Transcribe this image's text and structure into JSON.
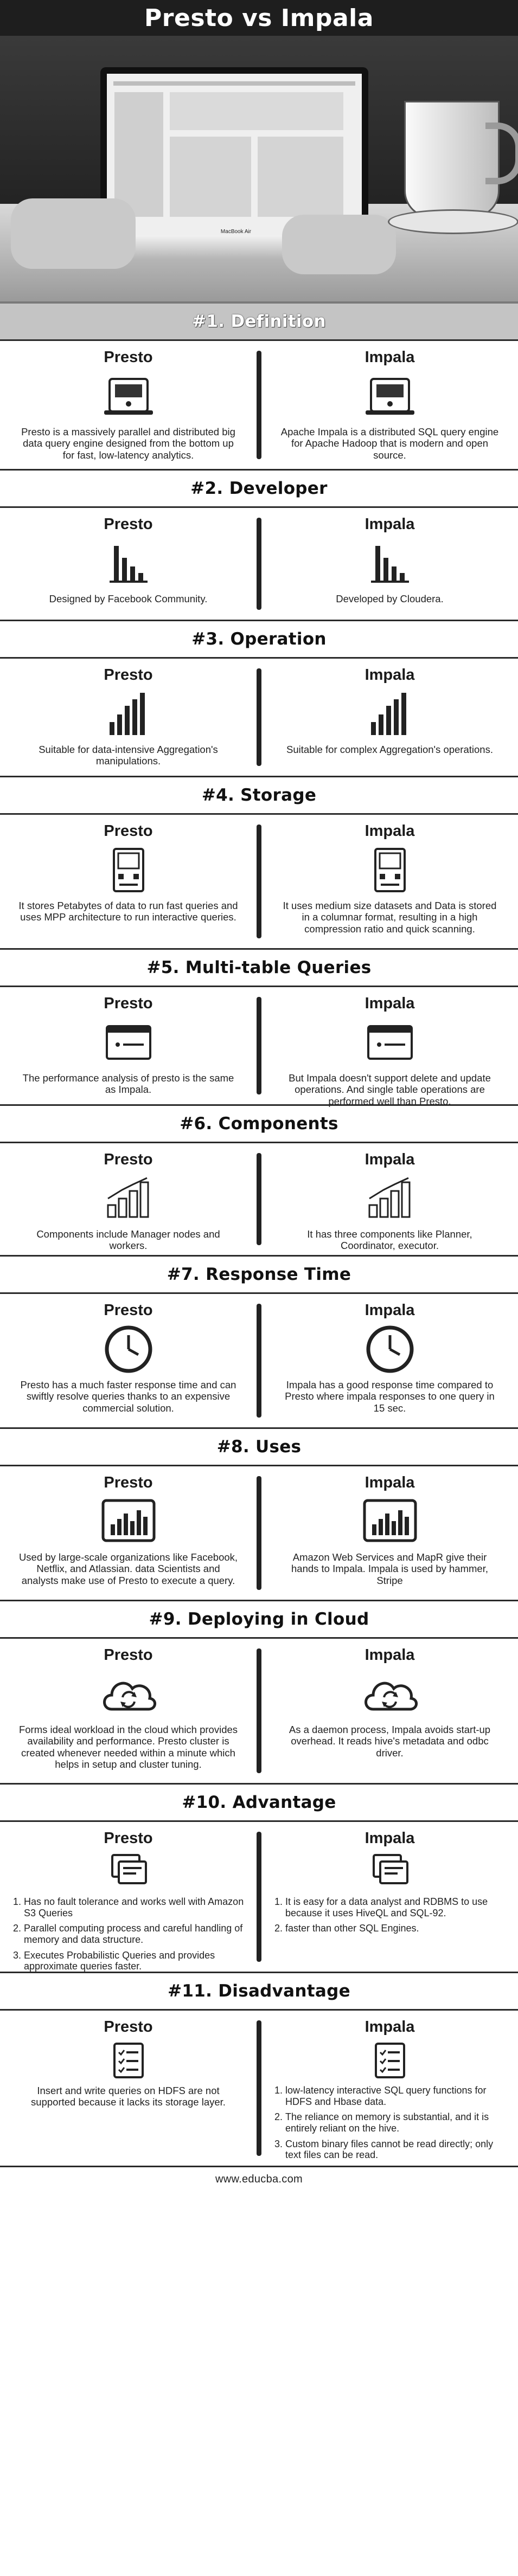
{
  "title": "Presto vs Impala",
  "footer": "www.educba.com",
  "hero": {
    "laptop_brand": "MacBook Air"
  },
  "sections": [
    {
      "heading": "#1. Definition",
      "icon": "framed-card-icon",
      "presto": {
        "label": "Presto",
        "text": "Presto is a massively parallel and distributed big data query engine designed from the bottom up for fast, low-latency analytics."
      },
      "impala": {
        "label": "Impala",
        "text": "Apache Impala is a distributed SQL query engine for Apache Hadoop that is modern and open source."
      }
    },
    {
      "heading": "#2. Developer",
      "icon": "bar-chart-icon",
      "presto": {
        "label": "Presto",
        "text": "Designed by Facebook Community."
      },
      "impala": {
        "label": "Impala",
        "text": "Developed by Cloudera."
      }
    },
    {
      "heading": "#3. Operation",
      "icon": "rising-bars-icon",
      "presto": {
        "label": "Presto",
        "text": "Suitable for data-intensive Aggregation's manipulations."
      },
      "impala": {
        "label": "Impala",
        "text": "Suitable for complex Aggregation's operations."
      }
    },
    {
      "heading": "#4. Storage",
      "icon": "device-icon",
      "presto": {
        "label": "Presto",
        "text": "It stores Petabytes of data to run fast queries and uses MPP architecture to run interactive queries."
      },
      "impala": {
        "label": "Impala",
        "text": "It uses medium size datasets and Data is stored in a columnar format, resulting in a high compression ratio and quick scanning."
      }
    },
    {
      "heading": "#5. Multi-table Queries",
      "icon": "window-icon",
      "presto": {
        "label": "Presto",
        "text": "The performance analysis of presto is the same as Impala."
      },
      "impala": {
        "label": "Impala",
        "text": "But Impala doesn't support delete and update operations. And single table operations are performed well than Presto."
      }
    },
    {
      "heading": "#6. Components",
      "icon": "signal-bars-icon",
      "presto": {
        "label": "Presto",
        "text": "Components include Manager nodes and workers."
      },
      "impala": {
        "label": "Impala",
        "text": "It has three components like Planner, Coordinator, executor."
      }
    },
    {
      "heading": "#7. Response Time",
      "icon": "clock-icon",
      "presto": {
        "label": "Presto",
        "text": "Presto has a much faster response time and can swiftly resolve queries thanks to an expensive commercial solution."
      },
      "impala": {
        "label": "Impala",
        "text": "Impala has a good response time compared to Presto where impala responses to one query in 15 sec."
      }
    },
    {
      "heading": "#8. Uses",
      "icon": "chart-board-icon",
      "presto": {
        "label": "Presto",
        "text": "Used by large-scale organizations like Facebook, Netflix, and Atlassian. data Scientists and analysts make use of Presto to execute a query."
      },
      "impala": {
        "label": "Impala",
        "text": "Amazon Web Services and MapR give their hands to Impala. Impala is used by hammer, Stripe"
      }
    },
    {
      "heading": "#9. Deploying in Cloud",
      "icon": "cloud-sync-icon",
      "presto": {
        "label": "Presto",
        "text": "Forms ideal workload in the cloud which provides availability and performance. Presto cluster is created whenever needed within a minute which helps in setup and cluster tuning."
      },
      "impala": {
        "label": "Impala",
        "text": "As a daemon process, Impala avoids start-up overhead. It reads hive's metadata and odbc driver."
      }
    },
    {
      "heading": "#10. Advantage",
      "icon": "stacked-cards-icon",
      "presto": {
        "label": "Presto",
        "items": [
          "Has no fault tolerance and works well with Amazon S3 Queries",
          "Parallel computing process and careful handling of memory and data structure.",
          "Executes Probabilistic Queries and provides approximate queries faster."
        ]
      },
      "impala": {
        "label": "Impala",
        "items": [
          "It is easy for a data analyst and RDBMS to use because it uses HiveQL and SQL-92.",
          "faster than other SQL Engines."
        ]
      }
    },
    {
      "heading": "#11. Disadvantage",
      "icon": "checklist-icon",
      "presto": {
        "label": "Presto",
        "text": "Insert and write queries on HDFS are not supported because it lacks its storage layer."
      },
      "impala": {
        "label": "Impala",
        "items": [
          "low-latency interactive SQL query functions for HDFS and Hbase data.",
          "The reliance on memory is substantial, and it is entirely reliant on the hive.",
          "Custom binary files cannot be read directly; only text files can be read."
        ]
      }
    }
  ]
}
